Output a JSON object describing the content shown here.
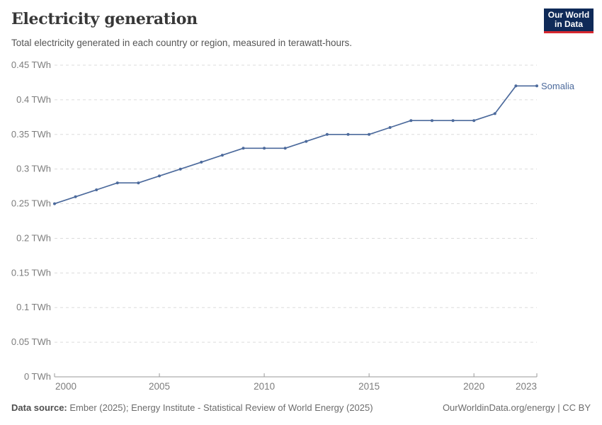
{
  "header": {
    "title": "Electricity generation",
    "subtitle": "Total electricity generated in each country or region, measured in terawatt-hours.",
    "logo": {
      "line1": "Our World",
      "line2": "in Data"
    }
  },
  "chart_data": {
    "type": "line",
    "title": "Electricity generation",
    "xlabel": "",
    "ylabel": "TWh",
    "xlim": [
      2000,
      2023
    ],
    "ylim": [
      0,
      0.45
    ],
    "x_ticks": [
      2000,
      2005,
      2010,
      2015,
      2020,
      2023
    ],
    "y_ticks": [
      0,
      0.05,
      0.1,
      0.15,
      0.2,
      0.25,
      0.3,
      0.35,
      0.4,
      0.45
    ],
    "y_tick_labels": [
      "0 TWh",
      "0.05 TWh",
      "0.1 TWh",
      "0.15 TWh",
      "0.2 TWh",
      "0.25 TWh",
      "0.3 TWh",
      "0.35 TWh",
      "0.4 TWh",
      "0.45 TWh"
    ],
    "grid": "horizontal-dashed",
    "legend_position": "end-of-line",
    "series": [
      {
        "name": "Somalia",
        "color": "#4C6A9C",
        "x": [
          2000,
          2001,
          2002,
          2003,
          2004,
          2005,
          2006,
          2007,
          2008,
          2009,
          2010,
          2011,
          2012,
          2013,
          2014,
          2015,
          2016,
          2017,
          2018,
          2019,
          2020,
          2021,
          2022,
          2023
        ],
        "values": [
          0.25,
          0.26,
          0.27,
          0.28,
          0.28,
          0.29,
          0.3,
          0.31,
          0.32,
          0.33,
          0.33,
          0.33,
          0.34,
          0.35,
          0.35,
          0.35,
          0.36,
          0.37,
          0.37,
          0.37,
          0.37,
          0.38,
          0.42,
          0.42
        ]
      }
    ]
  },
  "footer": {
    "datasource_label": "Data source:",
    "datasource_text": " Ember (2025); Energy Institute - Statistical Review of World Energy (2025)",
    "credit": "OurWorldinData.org/energy | CC BY"
  },
  "colors": {
    "accent_line": "#4C6A9C",
    "grid": "#dcdcdc",
    "axis": "#9a9a9a",
    "tick_text": "#7d7d7d",
    "logo_bg": "#0F2A58",
    "logo_red": "#D7282F"
  }
}
